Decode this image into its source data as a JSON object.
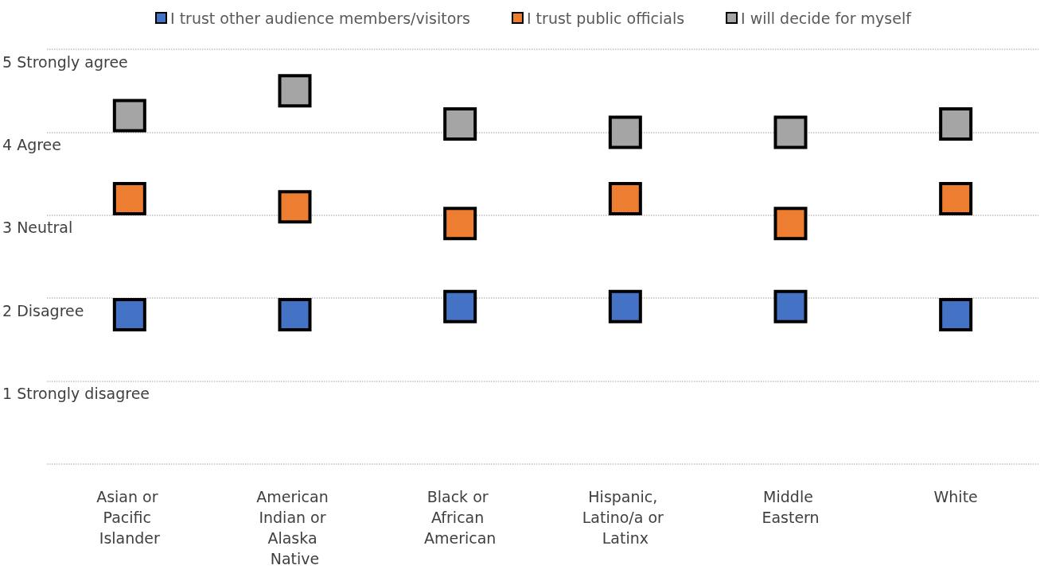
{
  "chart_data": {
    "type": "scatter",
    "categories": [
      "Asian or Pacific Islander",
      "American Indian or Alaska Native",
      "Black or African American",
      "Hispanic, Latino/a or Latinx",
      "Middle Eastern",
      "White"
    ],
    "series": [
      {
        "name": "I trust other audience members/visitors",
        "color": "#4472c4",
        "values": [
          1.8,
          1.8,
          1.9,
          1.9,
          1.9,
          1.8
        ]
      },
      {
        "name": "I trust public officials",
        "color": "#ed7d31",
        "values": [
          3.2,
          3.1,
          2.9,
          3.2,
          2.9,
          3.2
        ]
      },
      {
        "name": "I will decide for myself",
        "color": "#a5a5a5",
        "values": [
          4.2,
          4.5,
          4.1,
          4.0,
          4.0,
          4.1
        ]
      }
    ],
    "ylim": [
      0,
      5
    ],
    "yticks": [
      {
        "value": 0,
        "label": null
      },
      {
        "value": 1,
        "label": "1 Strongly disagree"
      },
      {
        "value": 2,
        "label": "2 Disagree"
      },
      {
        "value": 3,
        "label": "3 Neutral"
      },
      {
        "value": 4,
        "label": "4 Agree"
      },
      {
        "value": 5,
        "label": "5 Strongly agree"
      }
    ],
    "grid": "y",
    "legend": "top",
    "marker": "square"
  }
}
